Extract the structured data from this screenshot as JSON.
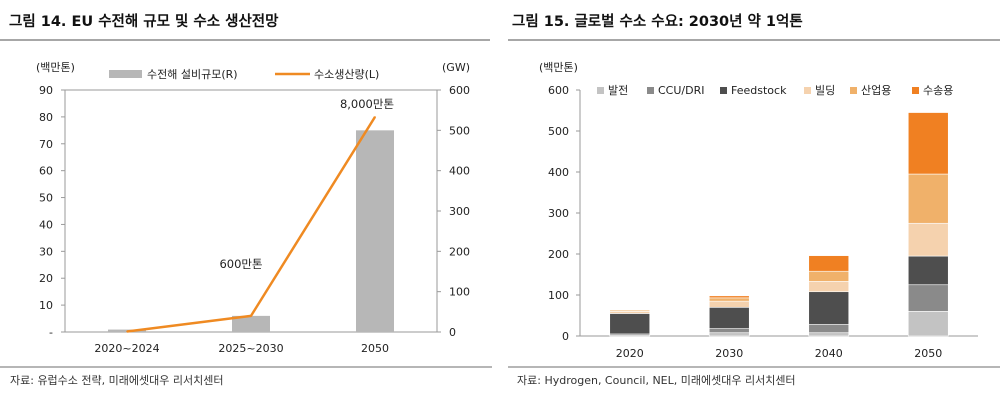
{
  "colors": {
    "bar_gray": "#b7b7b7",
    "line_orange": "#ef8a22",
    "stack": [
      "#c3c3c3",
      "#8a8a8a",
      "#4e4e4e",
      "#f5d2ae",
      "#f0b16a",
      "#f08022"
    ]
  },
  "chart_data": [
    {
      "type": "bar",
      "title": "그림 14. EU 수전해 규모 및 수소 생산전망",
      "categories": [
        "2020~2024",
        "2025~2030",
        "2050"
      ],
      "series": [
        {
          "name": "수전해 설비규모(R)",
          "axis": "right",
          "type": "bar",
          "values": [
            6,
            40,
            500
          ]
        },
        {
          "name": "수소생산량(L)",
          "axis": "left",
          "type": "line",
          "values": [
            0.2,
            6,
            80
          ]
        }
      ],
      "ylabel_left": "(백만톤)",
      "ylabel_right": "(GW)",
      "yticks_left": [
        "-",
        "10",
        "20",
        "30",
        "40",
        "50",
        "60",
        "70",
        "80",
        "90"
      ],
      "ylim_left": [
        0,
        90
      ],
      "yticks_right": [
        "0",
        "100",
        "200",
        "300",
        "400",
        "500",
        "600"
      ],
      "ylim_right": [
        0,
        600
      ],
      "annotations": [
        {
          "text": "600만톤",
          "category": "2025~2030"
        },
        {
          "text": "8,000만톤",
          "category": "2050"
        }
      ],
      "legend_placement": "top",
      "source": "자료: 유럽수소 전략, 미래에셋대우 리서치센터"
    },
    {
      "type": "bar",
      "stacked": true,
      "title": "그림 15. 글로벌 수소 수요: 2030년 약 1억톤",
      "categories": [
        "2020",
        "2030",
        "2040",
        "2050"
      ],
      "series": [
        {
          "name": "발전",
          "values": [
            1,
            8,
            8,
            60
          ]
        },
        {
          "name": "CCU/DRI",
          "values": [
            4,
            10,
            20,
            65
          ]
        },
        {
          "name": "Feedstock",
          "values": [
            50,
            52,
            80,
            70
          ]
        },
        {
          "name": "빌딩",
          "values": [
            5,
            15,
            25,
            80
          ]
        },
        {
          "name": "산업용",
          "values": [
            3,
            8,
            25,
            120
          ]
        },
        {
          "name": "수송용",
          "values": [
            1,
            5,
            38,
            150
          ]
        }
      ],
      "ylabel": "(백만톤)",
      "yticks": [
        "0",
        "100",
        "200",
        "300",
        "400",
        "500",
        "600"
      ],
      "ylim": [
        0,
        600
      ],
      "legend_placement": "top",
      "source": "자료: Hydrogen, Council, NEL, 미래에셋대우 리서치센터"
    }
  ]
}
